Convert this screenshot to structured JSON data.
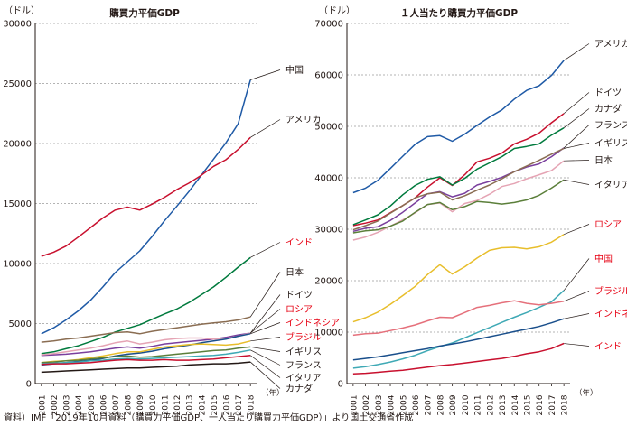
{
  "source_note": "資料）IMF「2019年10月資料（購買力平価GDP、一人当たり購買力平価GDP）」より国土交通省作成",
  "chart_data": [
    {
      "type": "line",
      "title": "購買力平価GDP",
      "unit_label": "（ドル）",
      "year_suffix": "（年）",
      "ylim": [
        0,
        30000
      ],
      "yticks": [
        0,
        5000,
        10000,
        15000,
        20000,
        25000,
        30000
      ],
      "x": [
        "2001",
        "2002",
        "2003",
        "2004",
        "2005",
        "2006",
        "2007",
        "2008",
        "2009",
        "2010",
        "2011",
        "2012",
        "2013",
        "2014",
        "2015",
        "2016",
        "2017",
        "2018"
      ],
      "series": [
        {
          "name": "中国",
          "color": "#1f5aa6",
          "label_color": "#231815",
          "values": [
            4150,
            4650,
            5300,
            6050,
            6950,
            8050,
            9250,
            10150,
            11050,
            12250,
            13550,
            14750,
            16000,
            17350,
            18700,
            20050,
            21650,
            25300
          ]
        },
        {
          "name": "アメリカ",
          "color": "#c8102e",
          "label_color": "#231815",
          "values": [
            10600,
            10950,
            11450,
            12200,
            13000,
            13800,
            14450,
            14700,
            14450,
            14950,
            15500,
            16150,
            16700,
            17350,
            18100,
            18650,
            19500,
            20500
          ]
        },
        {
          "name": "インド",
          "color": "#007a3d",
          "label_color": "#e60012",
          "values": [
            2500,
            2650,
            2900,
            3150,
            3500,
            3850,
            4300,
            4600,
            4900,
            5350,
            5800,
            6200,
            6750,
            7400,
            8050,
            8850,
            9700,
            10500
          ]
        },
        {
          "name": "日本",
          "color": "#8a6d52",
          "label_color": "#231815",
          "values": [
            3450,
            3550,
            3700,
            3800,
            3950,
            4100,
            4250,
            4300,
            4150,
            4350,
            4500,
            4650,
            4800,
            4950,
            5050,
            5150,
            5300,
            5550
          ]
        },
        {
          "name": "ドイツ",
          "color": "#7a3f9d",
          "label_color": "#231815",
          "values": [
            2350,
            2400,
            2450,
            2550,
            2650,
            2800,
            2950,
            3050,
            2950,
            3100,
            3300,
            3400,
            3500,
            3600,
            3700,
            3850,
            4050,
            4200
          ]
        },
        {
          "name": "ロシア",
          "color": "#e5a4b4",
          "label_color": "#e60012",
          "values": [
            2400,
            2500,
            2650,
            2800,
            2950,
            3150,
            3400,
            3550,
            3300,
            3450,
            3650,
            3750,
            3800,
            3800,
            3700,
            3750,
            3950,
            4200
          ]
        },
        {
          "name": "インドネシア",
          "color": "#1a4f8b",
          "label_color": "#e60012",
          "values": [
            1550,
            1650,
            1750,
            1850,
            1950,
            2100,
            2300,
            2450,
            2550,
            2700,
            2900,
            3050,
            3200,
            3400,
            3550,
            3700,
            3950,
            4150
          ]
        },
        {
          "name": "ブラジル",
          "color": "#e8be2b",
          "label_color": "#e60012",
          "values": [
            1750,
            1850,
            1900,
            2000,
            2150,
            2300,
            2500,
            2650,
            2650,
            2850,
            3050,
            3150,
            3250,
            3300,
            3250,
            3200,
            3300,
            3550
          ]
        },
        {
          "name": "イギリス",
          "color": "#5b7f3a",
          "label_color": "#231815",
          "values": [
            1750,
            1800,
            1900,
            1950,
            2050,
            2150,
            2250,
            2300,
            2200,
            2250,
            2350,
            2450,
            2550,
            2650,
            2750,
            2800,
            2950,
            3050
          ]
        },
        {
          "name": "フランス",
          "color": "#3fa9b5",
          "label_color": "#231815",
          "values": [
            1650,
            1700,
            1750,
            1800,
            1900,
            1950,
            2050,
            2100,
            2050,
            2100,
            2150,
            2200,
            2250,
            2300,
            2350,
            2450,
            2600,
            2800
          ]
        },
        {
          "name": "イタリア",
          "color": "#c8102e",
          "label_color": "#231815",
          "values": [
            1600,
            1650,
            1650,
            1700,
            1750,
            1850,
            1950,
            2000,
            1950,
            1950,
            2000,
            1950,
            1950,
            2000,
            2050,
            2150,
            2250,
            2350
          ]
        },
        {
          "name": "カナダ",
          "color": "#231815",
          "label_color": "#231815",
          "values": [
            950,
            1000,
            1050,
            1100,
            1150,
            1200,
            1250,
            1300,
            1300,
            1350,
            1400,
            1450,
            1550,
            1600,
            1650,
            1650,
            1700,
            1800
          ]
        }
      ]
    },
    {
      "type": "line",
      "title": "１人当たり購買力平価GDP",
      "unit_label": "（ドル）",
      "year_suffix": "（年）",
      "ylim": [
        0,
        70000
      ],
      "yticks": [
        0,
        10000,
        20000,
        30000,
        40000,
        50000,
        60000,
        70000
      ],
      "x": [
        "2001",
        "2002",
        "2003",
        "2004",
        "2005",
        "2006",
        "2007",
        "2008",
        "2009",
        "2010",
        "2011",
        "2012",
        "2013",
        "2014",
        "2015",
        "2016",
        "2017",
        "2018"
      ],
      "series": [
        {
          "name": "アメリカ",
          "color": "#1f5aa6",
          "label_color": "#231815",
          "values": [
            37100,
            38000,
            39500,
            41800,
            44200,
            46500,
            48000,
            48200,
            47100,
            48500,
            50200,
            51800,
            53200,
            55300,
            57000,
            57900,
            59900,
            62800
          ]
        },
        {
          "name": "ドイツ",
          "color": "#c8102e",
          "label_color": "#231815",
          "values": [
            30700,
            31200,
            31800,
            33200,
            34600,
            36100,
            38200,
            40000,
            38500,
            40600,
            43100,
            43800,
            44800,
            46600,
            47500,
            48700,
            50700,
            52500
          ]
        },
        {
          "name": "カナダ",
          "color": "#007a3d",
          "label_color": "#231815",
          "values": [
            30900,
            31800,
            32800,
            34500,
            36700,
            38500,
            39700,
            40200,
            38600,
            39900,
            41700,
            42900,
            44100,
            45700,
            46100,
            46600,
            48300,
            49700
          ]
        },
        {
          "name": "フランス",
          "color": "#7a3f9d",
          "label_color": "#231815",
          "values": [
            29600,
            30200,
            30500,
            31700,
            33300,
            35100,
            36900,
            37300,
            36300,
            37000,
            38600,
            39300,
            40100,
            41200,
            42100,
            42700,
            44100,
            45800
          ]
        },
        {
          "name": "イギリス",
          "color": "#8a6d52",
          "label_color": "#231815",
          "values": [
            29900,
            30700,
            31600,
            33100,
            34600,
            36100,
            36900,
            37200,
            35700,
            36500,
            37600,
            38600,
            39800,
            41200,
            42300,
            43400,
            44600,
            45700
          ]
        },
        {
          "name": "日本",
          "color": "#e5a4b4",
          "label_color": "#231815",
          "values": [
            27900,
            28500,
            29400,
            30600,
            31800,
            33200,
            34800,
            35100,
            33400,
            35000,
            35600,
            36800,
            38300,
            38900,
            39800,
            40600,
            41400,
            43300
          ]
        },
        {
          "name": "イタリア",
          "color": "#5b7f3a",
          "label_color": "#231815",
          "values": [
            29300,
            29700,
            29900,
            30600,
            31600,
            33300,
            34800,
            35200,
            33800,
            34400,
            35400,
            35200,
            34900,
            35200,
            35700,
            36600,
            38000,
            39600
          ]
        },
        {
          "name": "ロシア",
          "color": "#e8be2b",
          "label_color": "#e60012",
          "values": [
            12000,
            12800,
            13900,
            15400,
            17100,
            18900,
            21200,
            23100,
            21300,
            22700,
            24400,
            25900,
            26400,
            26500,
            26200,
            26600,
            27500,
            29000
          ]
        },
        {
          "name": "中国",
          "color": "#3fa9b5",
          "label_color": "#e60012",
          "values": [
            3000,
            3300,
            3700,
            4200,
            4800,
            5500,
            6400,
            7200,
            7900,
            8900,
            9900,
            10900,
            11900,
            12900,
            13800,
            14800,
            15900,
            18100
          ]
        },
        {
          "name": "ブラジル",
          "color": "#e5707b",
          "label_color": "#e60012",
          "values": [
            9400,
            9700,
            9800,
            10300,
            10800,
            11400,
            12200,
            12900,
            12800,
            13800,
            14800,
            15200,
            15700,
            16100,
            15600,
            15300,
            15600,
            16000
          ]
        },
        {
          "name": "インドネシア",
          "color": "#1a4f8b",
          "label_color": "#e60012",
          "values": [
            4600,
            4900,
            5200,
            5600,
            6000,
            6400,
            6800,
            7300,
            7700,
            8100,
            8600,
            9100,
            9600,
            10100,
            10600,
            11100,
            11800,
            12600
          ]
        },
        {
          "name": "インド",
          "color": "#c8102e",
          "label_color": "#e60012",
          "values": [
            1900,
            2000,
            2200,
            2400,
            2600,
            2900,
            3200,
            3500,
            3700,
            4000,
            4300,
            4600,
            4900,
            5300,
            5800,
            6200,
            6800,
            7800
          ]
        }
      ]
    }
  ]
}
